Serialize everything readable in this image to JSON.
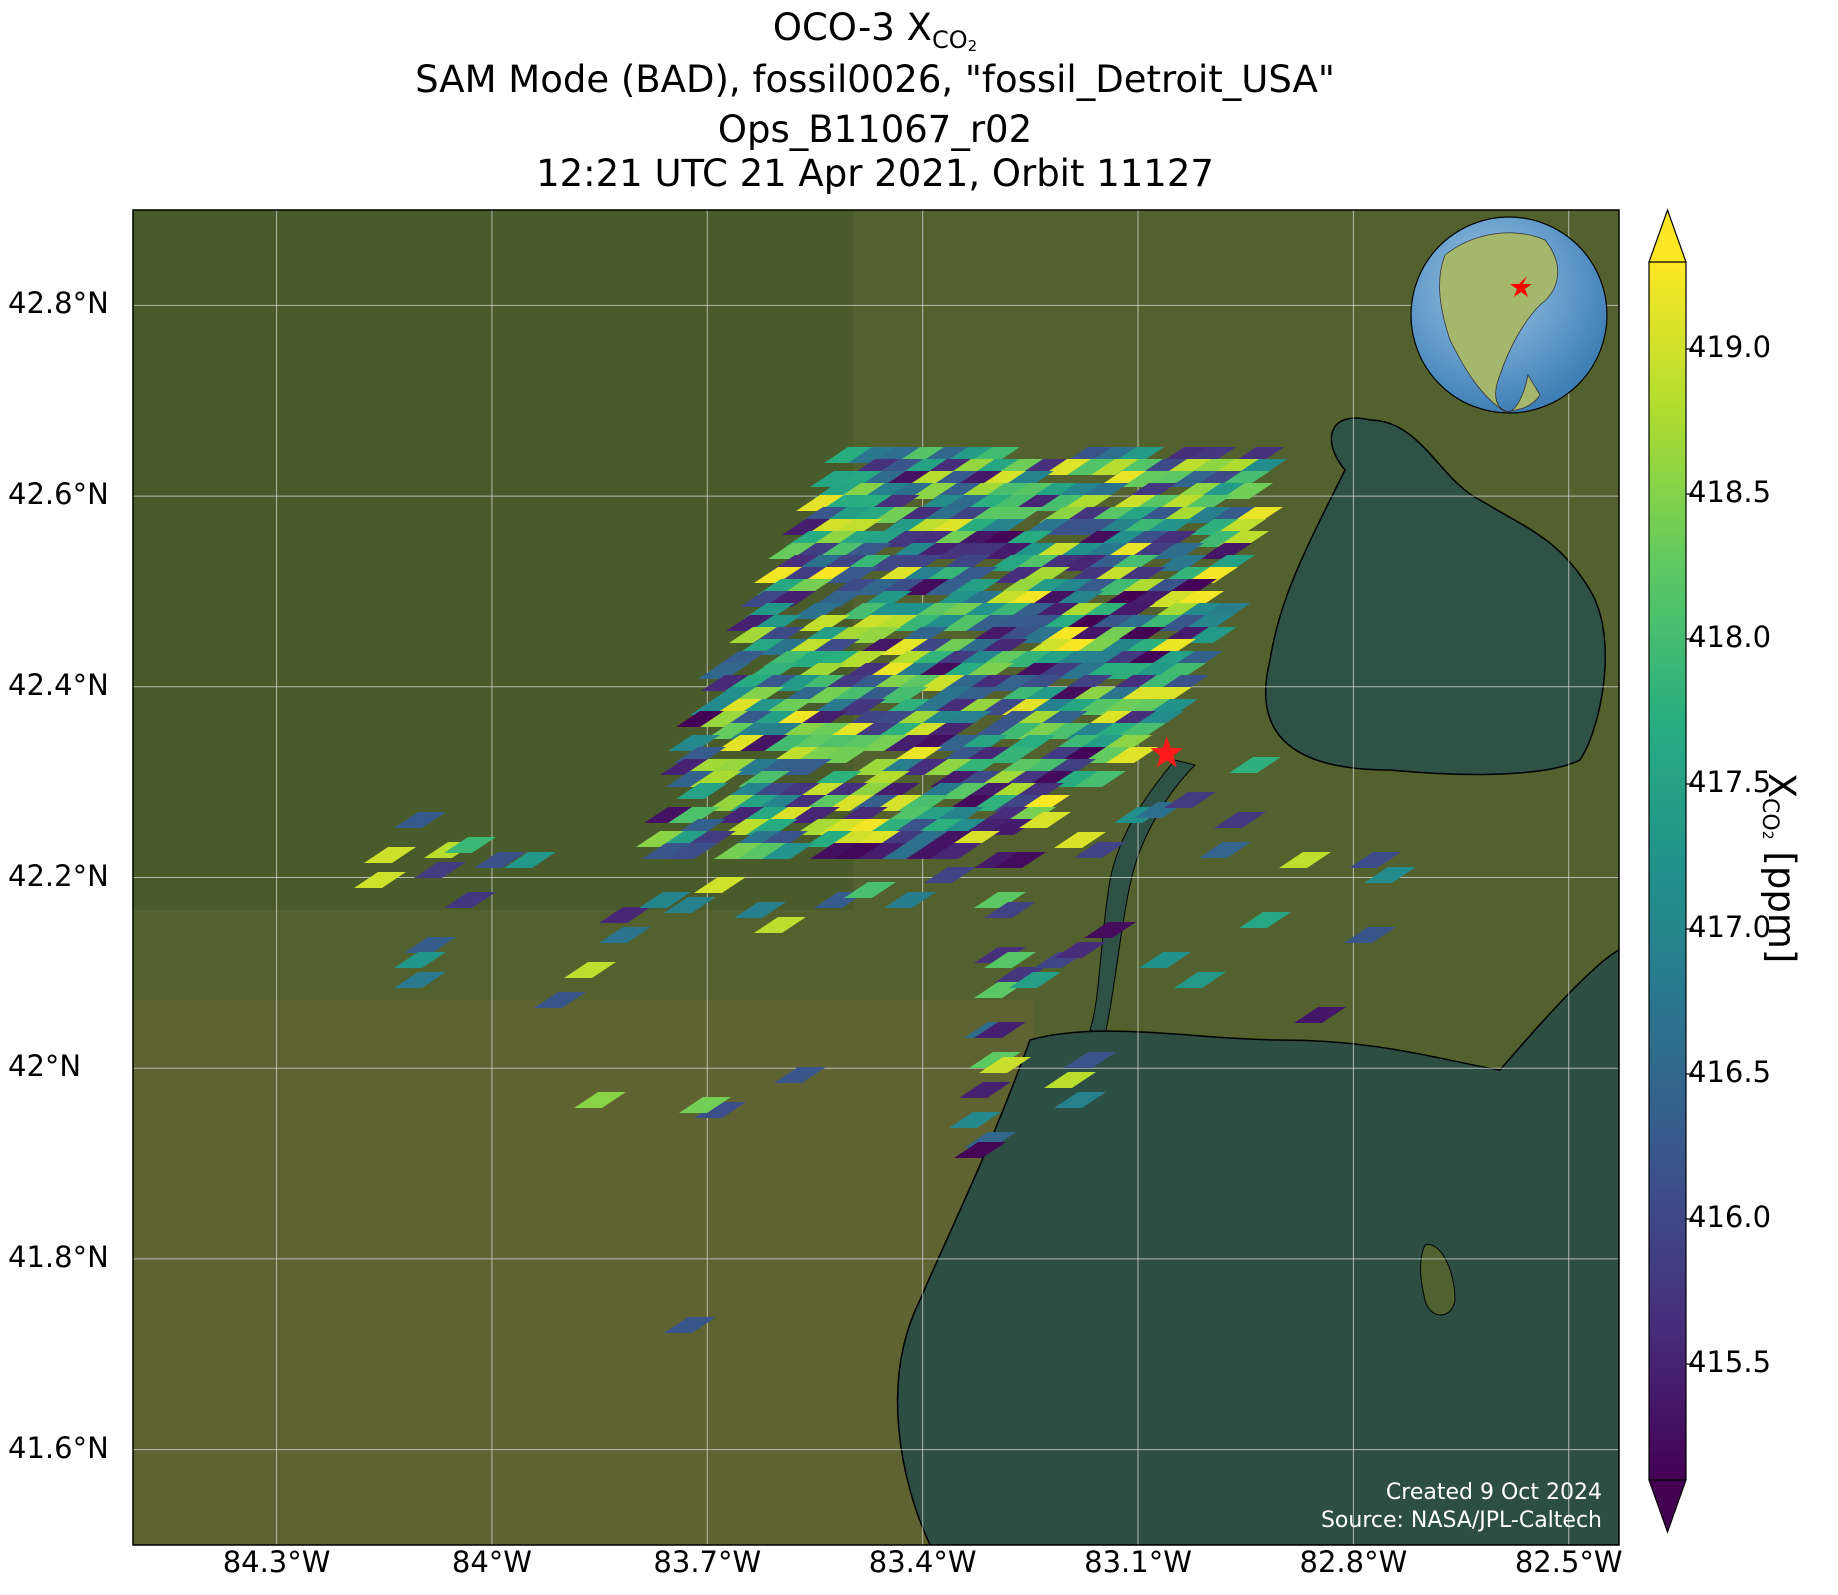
{
  "title": {
    "line1_prefix": "OCO-3 X",
    "line1_sub": "CO",
    "line1_subsub": "2",
    "line2": "SAM Mode (BAD), fossil0026, \"fossil_Detroit_USA\"",
    "line3": "Ops_B11067_r02",
    "line4": "12:21 UTC 21 Apr 2021, Orbit 11127"
  },
  "axes": {
    "lat_ticks": [
      "42.8°N",
      "42.6°N",
      "42.4°N",
      "42.2°N",
      "42°N",
      "41.8°N",
      "41.6°N"
    ],
    "lon_ticks": [
      "84.3°W",
      "84°W",
      "83.7°W",
      "83.4°W",
      "83.1°W",
      "82.8°W",
      "82.5°W"
    ],
    "lat_values": [
      42.8,
      42.6,
      42.4,
      42.2,
      42.0,
      41.8,
      41.6
    ],
    "lon_values": [
      -84.3,
      -84.0,
      -83.7,
      -83.4,
      -83.1,
      -82.8,
      -82.5
    ],
    "lat_range": [
      41.5,
      42.9
    ],
    "lon_range": [
      -84.5,
      -82.43
    ]
  },
  "colorbar": {
    "label_prefix": "X",
    "label_sub": "CO",
    "label_subsub": "2",
    "label_suffix": " [ppm]",
    "ticks": [
      "419.0",
      "418.5",
      "418.0",
      "417.5",
      "417.0",
      "416.5",
      "416.0",
      "415.5"
    ],
    "tick_values": [
      419.0,
      418.5,
      418.0,
      417.5,
      417.0,
      416.5,
      416.0,
      415.5
    ],
    "range": [
      415.1,
      419.3
    ],
    "colormap": "viridis",
    "colormap_stops": [
      "#440154",
      "#472d7b",
      "#3b528b",
      "#2c728e",
      "#21918c",
      "#28ae80",
      "#5ec962",
      "#addc30",
      "#fde725"
    ]
  },
  "site_marker": {
    "lat": 42.33,
    "lon": -83.06,
    "color": "#ff1a1a",
    "symbol": "star"
  },
  "credits": {
    "created": "Created 9 Oct 2024",
    "source": "Source: NASA/JPL-Caltech"
  },
  "inset_globe": {
    "description_icon": "globe-icon",
    "marker_color": "#ff0000"
  },
  "colors": {
    "land": "#4a5a2a",
    "lake": "#2e4a3a",
    "grid": "#d9d9d9",
    "coast": "#000000"
  }
}
